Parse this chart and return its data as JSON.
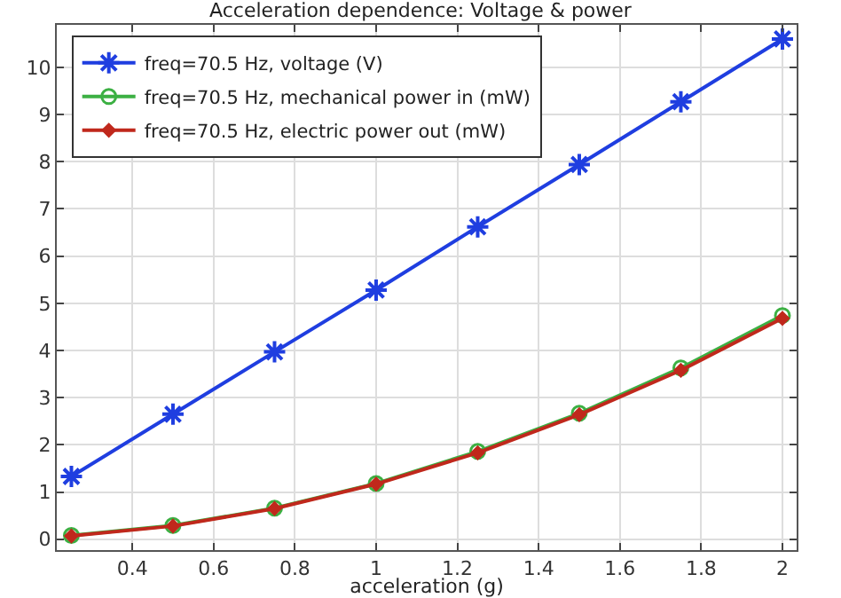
{
  "chart_data": {
    "type": "line",
    "title": "Acceleration dependence: Voltage & power",
    "xlabel": "acceleration (g)",
    "x": [
      0.25,
      0.5,
      0.75,
      1,
      1.25,
      1.5,
      1.75,
      2
    ],
    "series": [
      {
        "name": "freq=70.5 Hz, voltage (V)",
        "color": "#1f3ee0",
        "marker": "cross",
        "values": [
          1.33,
          2.65,
          3.97,
          5.28,
          6.62,
          7.94,
          9.27,
          10.6
        ]
      },
      {
        "name": "freq=70.5 Hz, mechanical power in (mW)",
        "color": "#3cb043",
        "marker": "circle",
        "values": [
          0.08,
          0.29,
          0.66,
          1.18,
          1.86,
          2.67,
          3.63,
          4.74
        ]
      },
      {
        "name": "freq=70.5 Hz, electric power out (mW)",
        "color": "#c0281c",
        "marker": "diamond",
        "values": [
          0.07,
          0.28,
          0.65,
          1.17,
          1.83,
          2.64,
          3.58,
          4.68
        ]
      }
    ],
    "xlim": [
      0.214,
      2.035
    ],
    "xticks": [
      0.4,
      0.6,
      0.8,
      1,
      1.2,
      1.4,
      1.6,
      1.8,
      2
    ],
    "ylim": [
      -0.23,
      10.9
    ],
    "yticks": [
      0,
      1,
      2,
      3,
      4,
      5,
      6,
      7,
      8,
      9,
      10
    ],
    "grid": true,
    "legend": "top left",
    "line_style": "solid"
  }
}
